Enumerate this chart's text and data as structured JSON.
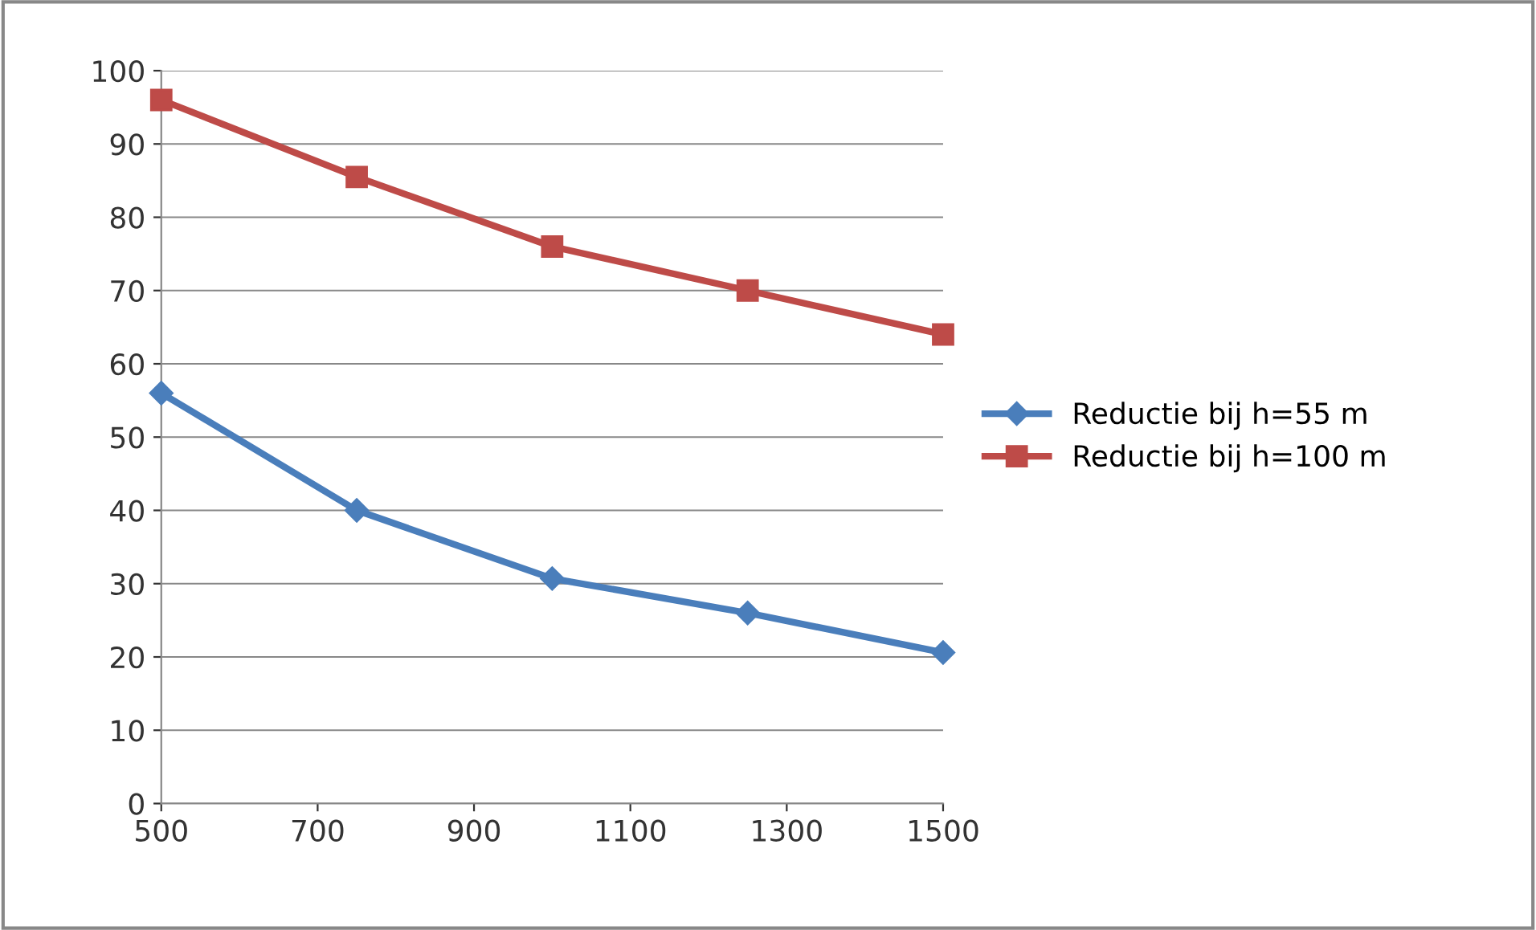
{
  "chart_data": {
    "type": "line",
    "x": [
      500,
      750,
      1000,
      1250,
      1500
    ],
    "series": [
      {
        "name": "Reductie bij h=55 m",
        "color": "#4a7ebb",
        "marker": "diamond",
        "values": [
          56,
          40,
          30.7,
          26,
          20.6
        ]
      },
      {
        "name": "Reductie bij h=100 m",
        "color": "#be4b48",
        "marker": "square",
        "values": [
          96,
          85.5,
          76,
          70,
          64
        ]
      }
    ],
    "xlim": [
      500,
      1500
    ],
    "xticks": [
      500,
      700,
      900,
      1100,
      1300,
      1500
    ],
    "ylim": [
      0,
      100
    ],
    "yticks": [
      0,
      10,
      20,
      30,
      40,
      50,
      60,
      70,
      80,
      90,
      100
    ],
    "grid": "y",
    "legend": "right",
    "line_style": "solid"
  }
}
